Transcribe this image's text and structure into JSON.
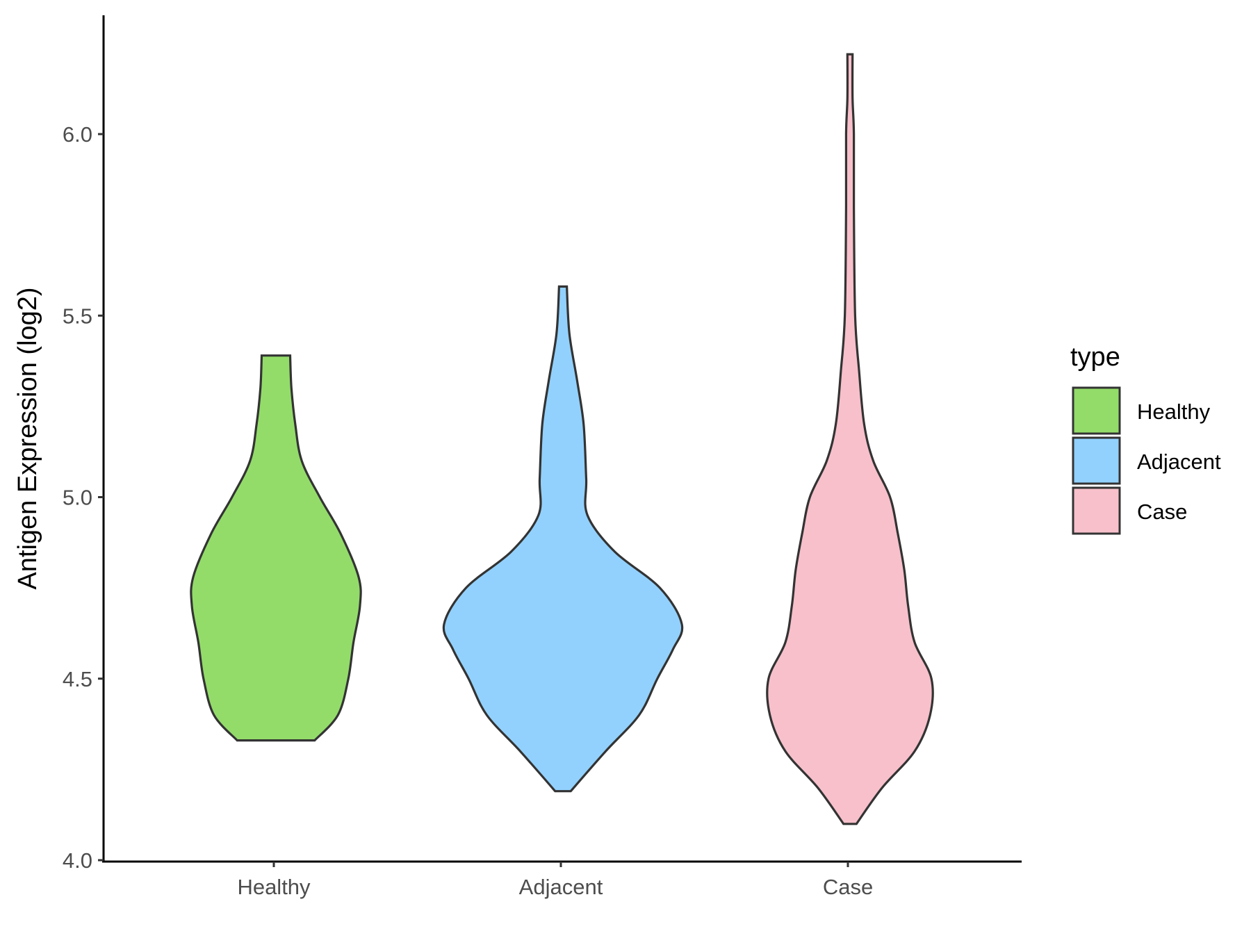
{
  "chart_data": {
    "type": "violin",
    "title": "",
    "xlabel": "",
    "ylabel": "Antigen Expression (log2)",
    "ylim": [
      4.0,
      6.3
    ],
    "yticks": [
      4.0,
      4.5,
      5.0,
      5.5,
      6.0
    ],
    "ytick_labels": [
      "4.0",
      "4.5",
      "5.0",
      "5.5",
      "6.0"
    ],
    "categories": [
      "Healthy",
      "Adjacent",
      "Case"
    ],
    "legend": {
      "title": "type",
      "position": "right",
      "entries": [
        "Healthy",
        "Adjacent",
        "Case"
      ]
    },
    "series": [
      {
        "name": "Healthy",
        "color": "#93dc6a",
        "min": 4.33,
        "max": 5.39,
        "density": [
          [
            4.33,
            0.3
          ],
          [
            4.4,
            0.48
          ],
          [
            4.5,
            0.56
          ],
          [
            4.6,
            0.6
          ],
          [
            4.7,
            0.65
          ],
          [
            4.78,
            0.64
          ],
          [
            4.9,
            0.5
          ],
          [
            5.0,
            0.34
          ],
          [
            5.1,
            0.2
          ],
          [
            5.2,
            0.15
          ],
          [
            5.3,
            0.12
          ],
          [
            5.39,
            0.11
          ]
        ]
      },
      {
        "name": "Adjacent",
        "color": "#92d1fd",
        "min": 4.19,
        "max": 5.58,
        "density": [
          [
            4.19,
            0.06
          ],
          [
            4.3,
            0.33
          ],
          [
            4.4,
            0.59
          ],
          [
            4.5,
            0.73
          ],
          [
            4.58,
            0.85
          ],
          [
            4.65,
            0.92
          ],
          [
            4.75,
            0.75
          ],
          [
            4.85,
            0.4
          ],
          [
            4.95,
            0.19
          ],
          [
            5.05,
            0.18
          ],
          [
            5.2,
            0.16
          ],
          [
            5.32,
            0.11
          ],
          [
            5.45,
            0.05
          ],
          [
            5.58,
            0.03
          ]
        ]
      },
      {
        "name": "Case",
        "color": "#f7c0cb",
        "min": 4.1,
        "max": 6.22,
        "density": [
          [
            4.1,
            0.05
          ],
          [
            4.2,
            0.25
          ],
          [
            4.3,
            0.5
          ],
          [
            4.4,
            0.62
          ],
          [
            4.5,
            0.63
          ],
          [
            4.6,
            0.5
          ],
          [
            4.7,
            0.45
          ],
          [
            4.8,
            0.42
          ],
          [
            4.9,
            0.37
          ],
          [
            5.0,
            0.31
          ],
          [
            5.1,
            0.18
          ],
          [
            5.2,
            0.11
          ],
          [
            5.35,
            0.07
          ],
          [
            5.5,
            0.04
          ],
          [
            5.8,
            0.03
          ],
          [
            6.0,
            0.03
          ],
          [
            6.1,
            0.02
          ],
          [
            6.22,
            0.02
          ]
        ]
      }
    ]
  }
}
